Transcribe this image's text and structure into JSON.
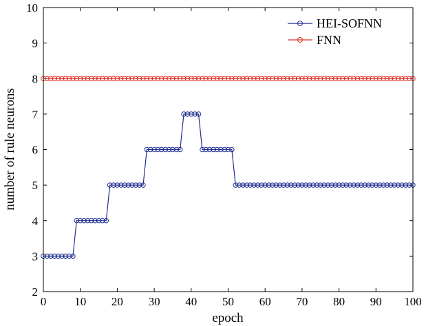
{
  "chart_data": {
    "type": "line",
    "xlabel": "epoch",
    "ylabel": "number of rule neurons",
    "xlim": [
      0,
      100
    ],
    "ylim": [
      2,
      10
    ],
    "xticks": [
      0,
      10,
      20,
      30,
      40,
      50,
      60,
      70,
      80,
      90,
      100
    ],
    "yticks": [
      2,
      3,
      4,
      5,
      6,
      7,
      8,
      9,
      10
    ],
    "grid": false,
    "legend": "top-right",
    "series": [
      {
        "name": "HEI-SOFNN",
        "color": "#1f2f8f",
        "marker": "circle",
        "x": [
          0,
          1,
          2,
          3,
          4,
          5,
          6,
          7,
          8,
          9,
          10,
          11,
          12,
          13,
          14,
          15,
          16,
          17,
          18,
          19,
          20,
          21,
          22,
          23,
          24,
          25,
          26,
          27,
          28,
          29,
          30,
          31,
          32,
          33,
          34,
          35,
          36,
          37,
          38,
          39,
          40,
          41,
          42,
          43,
          44,
          45,
          46,
          47,
          48,
          49,
          50,
          51,
          52,
          53,
          54,
          55,
          56,
          57,
          58,
          59,
          60,
          61,
          62,
          63,
          64,
          65,
          66,
          67,
          68,
          69,
          70,
          71,
          72,
          73,
          74,
          75,
          76,
          77,
          78,
          79,
          80,
          81,
          82,
          83,
          84,
          85,
          86,
          87,
          88,
          89,
          90,
          91,
          92,
          93,
          94,
          95,
          96,
          97,
          98,
          99,
          100
        ],
        "y": [
          3,
          3,
          3,
          3,
          3,
          3,
          3,
          3,
          3,
          4,
          4,
          4,
          4,
          4,
          4,
          4,
          4,
          4,
          5,
          5,
          5,
          5,
          5,
          5,
          5,
          5,
          5,
          5,
          6,
          6,
          6,
          6,
          6,
          6,
          6,
          6,
          6,
          6,
          7,
          7,
          7,
          7,
          7,
          6,
          6,
          6,
          6,
          6,
          6,
          6,
          6,
          6,
          5,
          5,
          5,
          5,
          5,
          5,
          5,
          5,
          5,
          5,
          5,
          5,
          5,
          5,
          5,
          5,
          5,
          5,
          5,
          5,
          5,
          5,
          5,
          5,
          5,
          5,
          5,
          5,
          5,
          5,
          5,
          5,
          5,
          5,
          5,
          5,
          5,
          5,
          5,
          5,
          5,
          5,
          5,
          5,
          5,
          5,
          5,
          5,
          5
        ]
      },
      {
        "name": "FNN",
        "color": "#e0322b",
        "marker": "circle",
        "x": [
          0,
          1,
          2,
          3,
          4,
          5,
          6,
          7,
          8,
          9,
          10,
          11,
          12,
          13,
          14,
          15,
          16,
          17,
          18,
          19,
          20,
          21,
          22,
          23,
          24,
          25,
          26,
          27,
          28,
          29,
          30,
          31,
          32,
          33,
          34,
          35,
          36,
          37,
          38,
          39,
          40,
          41,
          42,
          43,
          44,
          45,
          46,
          47,
          48,
          49,
          50,
          51,
          52,
          53,
          54,
          55,
          56,
          57,
          58,
          59,
          60,
          61,
          62,
          63,
          64,
          65,
          66,
          67,
          68,
          69,
          70,
          71,
          72,
          73,
          74,
          75,
          76,
          77,
          78,
          79,
          80,
          81,
          82,
          83,
          84,
          85,
          86,
          87,
          88,
          89,
          90,
          91,
          92,
          93,
          94,
          95,
          96,
          97,
          98,
          99,
          100
        ],
        "y": [
          8,
          8,
          8,
          8,
          8,
          8,
          8,
          8,
          8,
          8,
          8,
          8,
          8,
          8,
          8,
          8,
          8,
          8,
          8,
          8,
          8,
          8,
          8,
          8,
          8,
          8,
          8,
          8,
          8,
          8,
          8,
          8,
          8,
          8,
          8,
          8,
          8,
          8,
          8,
          8,
          8,
          8,
          8,
          8,
          8,
          8,
          8,
          8,
          8,
          8,
          8,
          8,
          8,
          8,
          8,
          8,
          8,
          8,
          8,
          8,
          8,
          8,
          8,
          8,
          8,
          8,
          8,
          8,
          8,
          8,
          8,
          8,
          8,
          8,
          8,
          8,
          8,
          8,
          8,
          8,
          8,
          8,
          8,
          8,
          8,
          8,
          8,
          8,
          8,
          8,
          8,
          8,
          8,
          8,
          8,
          8,
          8,
          8,
          8,
          8,
          8
        ]
      }
    ]
  }
}
